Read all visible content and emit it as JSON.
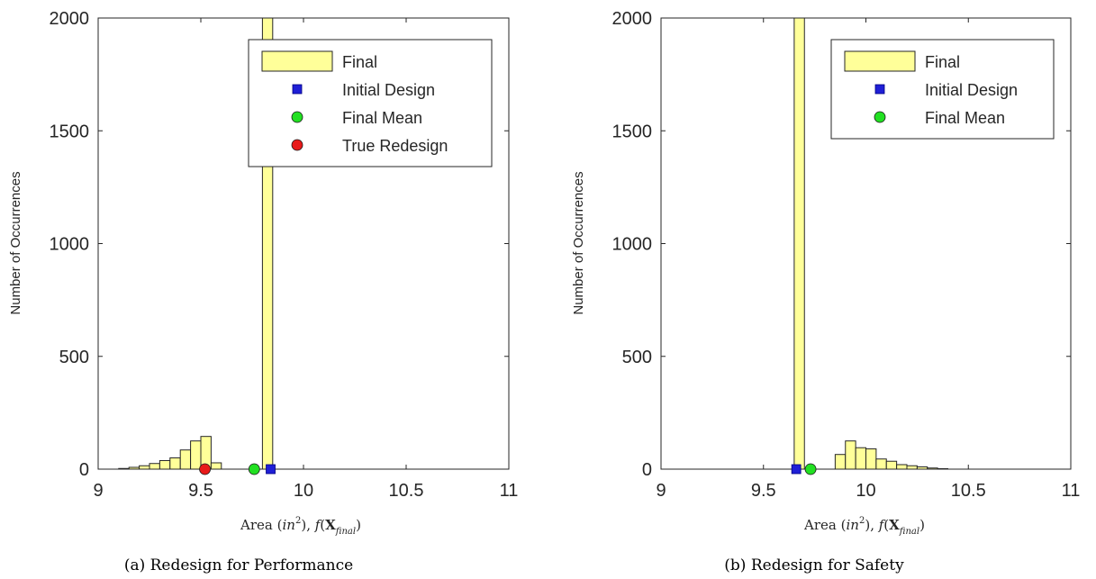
{
  "colors": {
    "bar_fill": "#ffff99",
    "bar_stroke": "#262626",
    "initial_design": "#1f1fd6",
    "final_mean": "#22e022",
    "true_redesign": "#e81a1a"
  },
  "chart_data": [
    {
      "type": "bar",
      "caption": "(a) Redesign for Performance",
      "xlabel": "Area (in², f(X̂final)",
      "xlabel_parts": {
        "prefix": "Area (",
        "in": "in",
        "sup": "2",
        "middle": "), ",
        "f": "f",
        "open": "(",
        "X": "X",
        "hat": "^",
        "sub": "final",
        "close": ")"
      },
      "ylabel": "Number of Occurrences",
      "xlim": [
        9,
        11
      ],
      "ylim": [
        0,
        2000
      ],
      "xticks": [
        "9",
        "9.5",
        "10",
        "10.5",
        "11"
      ],
      "yticks": [
        "0",
        "500",
        "1000",
        "1500",
        "2000"
      ],
      "bin_width": 0.05,
      "bins": [
        {
          "x": 9.125,
          "count": 3
        },
        {
          "x": 9.175,
          "count": 8
        },
        {
          "x": 9.225,
          "count": 15
        },
        {
          "x": 9.275,
          "count": 25
        },
        {
          "x": 9.325,
          "count": 38
        },
        {
          "x": 9.375,
          "count": 50
        },
        {
          "x": 9.425,
          "count": 85
        },
        {
          "x": 9.475,
          "count": 125
        },
        {
          "x": 9.525,
          "count": 145
        },
        {
          "x": 9.575,
          "count": 28
        },
        {
          "x": 9.825,
          "count": 2000
        }
      ],
      "markers": [
        {
          "name": "Initial Design",
          "x": 9.84,
          "y": 0,
          "shape": "square",
          "color": "#1f1fd6"
        },
        {
          "name": "Final Mean",
          "x": 9.76,
          "y": 0,
          "shape": "circle",
          "color": "#22e022"
        },
        {
          "name": "True Redesign",
          "x": 9.52,
          "y": 0,
          "shape": "circle",
          "color": "#e81a1a"
        }
      ],
      "legend": {
        "placement": "top-right",
        "entries": [
          {
            "label": "Final",
            "shape": "bar"
          },
          {
            "label": "Initial Design",
            "shape": "square",
            "color": "#1f1fd6"
          },
          {
            "label": "Final Mean",
            "shape": "circle",
            "color": "#22e022"
          },
          {
            "label": "True Redesign",
            "shape": "circle",
            "color": "#e81a1a"
          }
        ]
      }
    },
    {
      "type": "bar",
      "caption": "(b) Redesign for Safety",
      "xlabel": "Area (in², f(X̂final)",
      "xlabel_parts": {
        "prefix": "Area (",
        "in": "in",
        "sup": "2",
        "middle": "), ",
        "f": "f",
        "open": "(",
        "X": "X",
        "hat": "^",
        "sub": "final",
        "close": ")"
      },
      "ylabel": "Number of Occurrences",
      "xlim": [
        9,
        11
      ],
      "ylim": [
        0,
        2000
      ],
      "xticks": [
        "9",
        "9.5",
        "10",
        "10.5",
        "11"
      ],
      "yticks": [
        "0",
        "500",
        "1000",
        "1500",
        "2000"
      ],
      "bin_width": 0.05,
      "bins": [
        {
          "x": 9.675,
          "count": 2000
        },
        {
          "x": 9.875,
          "count": 65
        },
        {
          "x": 9.925,
          "count": 125
        },
        {
          "x": 9.975,
          "count": 95
        },
        {
          "x": 10.025,
          "count": 90
        },
        {
          "x": 10.075,
          "count": 45
        },
        {
          "x": 10.125,
          "count": 35
        },
        {
          "x": 10.175,
          "count": 20
        },
        {
          "x": 10.225,
          "count": 15
        },
        {
          "x": 10.275,
          "count": 10
        },
        {
          "x": 10.325,
          "count": 5
        },
        {
          "x": 10.375,
          "count": 2
        }
      ],
      "markers": [
        {
          "name": "Initial Design",
          "x": 9.66,
          "y": 0,
          "shape": "square",
          "color": "#1f1fd6"
        },
        {
          "name": "Final Mean",
          "x": 9.73,
          "y": 0,
          "shape": "circle",
          "color": "#22e022"
        }
      ],
      "legend": {
        "placement": "top-right",
        "entries": [
          {
            "label": "Final",
            "shape": "bar"
          },
          {
            "label": "Initial Design",
            "shape": "square",
            "color": "#1f1fd6"
          },
          {
            "label": "Final Mean",
            "shape": "circle",
            "color": "#22e022"
          }
        ]
      }
    }
  ]
}
